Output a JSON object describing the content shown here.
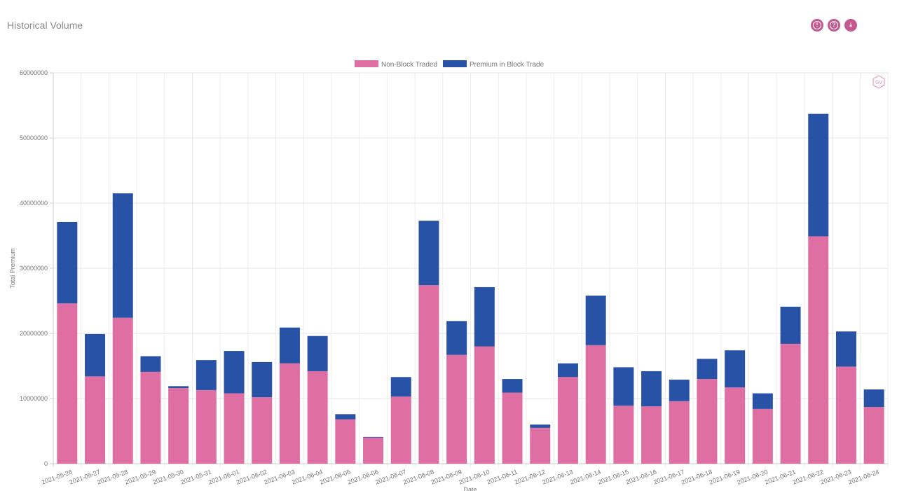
{
  "header": {
    "title": "Historical Volume"
  },
  "toolbar": [
    {
      "icon": "info-icon",
      "glyph": "!"
    },
    {
      "icon": "help-icon",
      "glyph": "?"
    },
    {
      "icon": "download-icon",
      "glyph": "⤓"
    }
  ],
  "watermark": "GV",
  "colors": {
    "non_block": "#df6fa2",
    "block": "#2852a5"
  },
  "chart_data": {
    "type": "bar",
    "stacked": true,
    "title": "",
    "xlabel": "Date",
    "ylabel": "Total Premium",
    "ylim": [
      0,
      60000000
    ],
    "yticks": [
      "0",
      "10000000",
      "20000000",
      "30000000",
      "40000000",
      "50000000",
      "60000000"
    ],
    "legend_position": "top",
    "grid": true,
    "categories": [
      "2021-05-26",
      "2021-05-27",
      "2021-05-28",
      "2021-05-29",
      "2021-05-30",
      "2021-05-31",
      "2021-06-01",
      "2021-06-02",
      "2021-06-03",
      "2021-06-04",
      "2021-06-05",
      "2021-06-06",
      "2021-06-07",
      "2021-06-08",
      "2021-06-09",
      "2021-06-10",
      "2021-06-11",
      "2021-06-12",
      "2021-06-13",
      "2021-06-14",
      "2021-06-15",
      "2021-06-16",
      "2021-06-17",
      "2021-06-18",
      "2021-06-19",
      "2021-06-20",
      "2021-06-21",
      "2021-06-22",
      "2021-06-23",
      "2021-06-24"
    ],
    "series": [
      {
        "name": "Non-Block Traded",
        "values": [
          24600000,
          13400000,
          22400000,
          14100000,
          11600000,
          11300000,
          10800000,
          10200000,
          15400000,
          14200000,
          6800000,
          4000000,
          10300000,
          27400000,
          16700000,
          18000000,
          10900000,
          5500000,
          13300000,
          18200000,
          8900000,
          8800000,
          9600000,
          13000000,
          11700000,
          8400000,
          18400000,
          34900000,
          14900000,
          8700000
        ]
      },
      {
        "name": "Premium in Block Trade",
        "values": [
          12500000,
          6500000,
          19100000,
          2400000,
          300000,
          4600000,
          6500000,
          5400000,
          5500000,
          5400000,
          800000,
          100000,
          3000000,
          9900000,
          5200000,
          9100000,
          2100000,
          500000,
          2100000,
          7600000,
          5900000,
          5400000,
          3300000,
          3100000,
          5700000,
          2400000,
          5700000,
          18800000,
          5400000,
          2700000
        ]
      }
    ]
  }
}
